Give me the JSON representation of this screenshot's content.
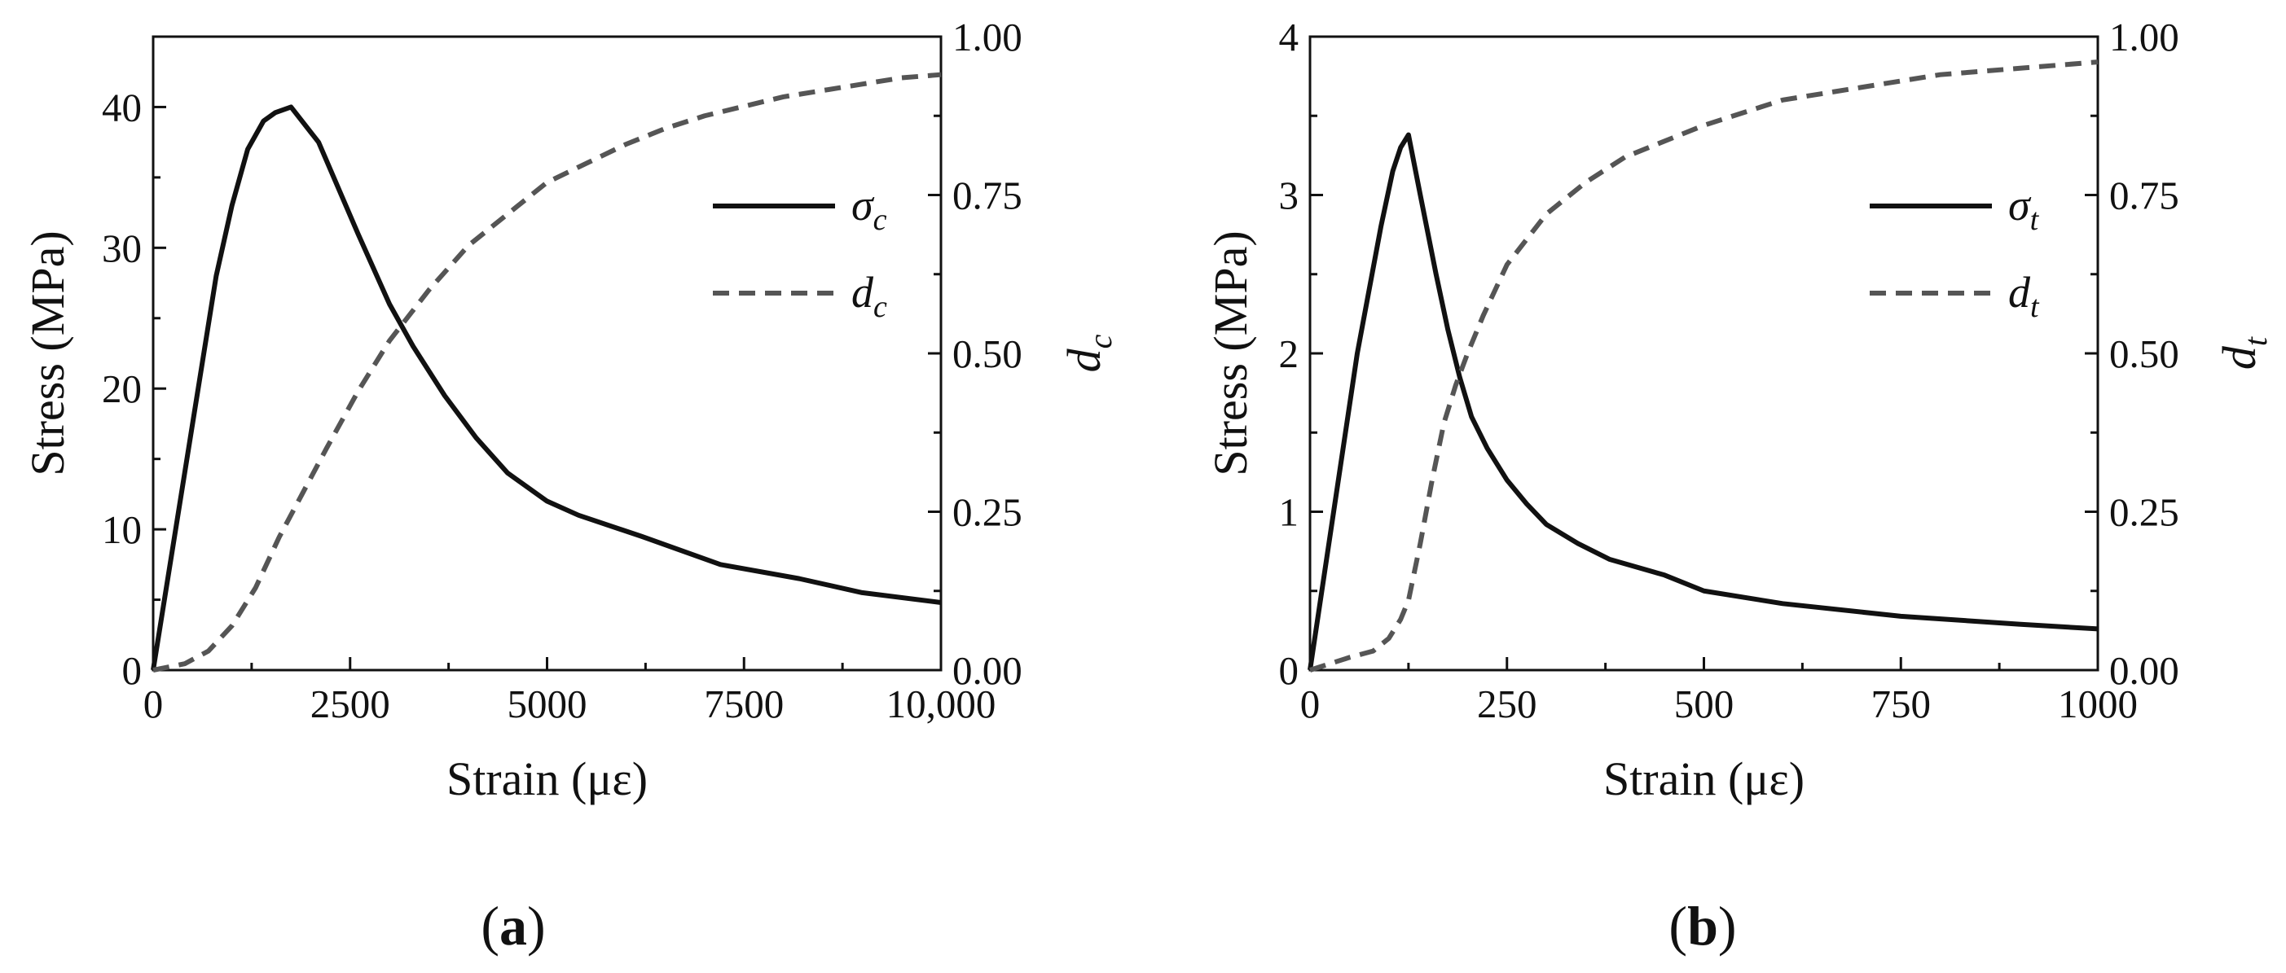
{
  "chart_data": [
    {
      "type": "line",
      "panel_label": "(a)",
      "xlabel": "Strain (με)",
      "ylabel": "Stress (MPa)",
      "y2label": "dc",
      "xlim": [
        0,
        10000
      ],
      "ylim": [
        0,
        45
      ],
      "y2lim": [
        0,
        1.0
      ],
      "x_ticks": [
        0,
        2500,
        5000,
        7500,
        10000
      ],
      "x_tick_labels": [
        "0",
        "2500",
        "5000",
        "7500",
        "10,000"
      ],
      "y_ticks": [
        0,
        10,
        20,
        30,
        40
      ],
      "y_tick_labels": [
        "0",
        "10",
        "20",
        "30",
        "40"
      ],
      "y2_ticks": [
        0,
        0.25,
        0.5,
        0.75,
        1.0
      ],
      "y2_tick_labels": [
        "0.00",
        "0.25",
        "0.50",
        "0.75",
        "1.00"
      ],
      "legend_position": "center-right",
      "series": [
        {
          "name": "σc",
          "label_main": "σ",
          "label_sub": "c",
          "axis": "left",
          "style": "solid",
          "color": "#111111",
          "x": [
            0,
            400,
            800,
            1000,
            1200,
            1400,
            1550,
            1750,
            2100,
            2600,
            3000,
            3300,
            3700,
            4100,
            4500,
            5000,
            5400,
            6200,
            7200,
            8200,
            9000,
            10000
          ],
          "y": [
            0,
            14,
            28,
            33,
            37,
            39,
            39.6,
            40,
            37.5,
            31,
            26,
            23,
            19.5,
            16.5,
            14,
            12,
            11,
            9.5,
            7.5,
            6.5,
            5.5,
            4.8
          ]
        },
        {
          "name": "dc",
          "label_main": "d",
          "label_sub": "c",
          "axis": "right",
          "style": "dashed",
          "color": "#555555",
          "x": [
            0,
            400,
            700,
            1000,
            1300,
            1600,
            1900,
            2200,
            2600,
            3000,
            3500,
            4000,
            4500,
            5000,
            5500,
            6000,
            6500,
            7000,
            7500,
            8000,
            8500,
            9000,
            9500,
            10000
          ],
          "y": [
            0,
            0.01,
            0.03,
            0.07,
            0.13,
            0.21,
            0.28,
            0.35,
            0.44,
            0.52,
            0.6,
            0.67,
            0.72,
            0.77,
            0.8,
            0.83,
            0.855,
            0.875,
            0.89,
            0.905,
            0.915,
            0.925,
            0.935,
            0.94
          ]
        }
      ]
    },
    {
      "type": "line",
      "panel_label": "(b)",
      "xlabel": "Strain (με)",
      "ylabel": "Stress (MPa)",
      "y2label": "dt",
      "xlim": [
        0,
        1000
      ],
      "ylim": [
        0,
        4
      ],
      "y2lim": [
        0,
        1.0
      ],
      "x_ticks": [
        0,
        250,
        500,
        750,
        1000
      ],
      "x_tick_labels": [
        "0",
        "250",
        "500",
        "750",
        "1000"
      ],
      "y_ticks": [
        0,
        1,
        2,
        3,
        4
      ],
      "y_tick_labels": [
        "0",
        "1",
        "2",
        "3",
        "4"
      ],
      "y2_ticks": [
        0,
        0.25,
        0.5,
        0.75,
        1.0
      ],
      "y2_tick_labels": [
        "0.00",
        "0.25",
        "0.50",
        "0.75",
        "1.00"
      ],
      "legend_position": "top-right",
      "series": [
        {
          "name": "σt",
          "label_main": "σ",
          "label_sub": "t",
          "axis": "left",
          "style": "solid",
          "color": "#111111",
          "x": [
            0,
            30,
            60,
            90,
            105,
            115,
            125,
            140,
            160,
            175,
            190,
            205,
            225,
            250,
            275,
            300,
            340,
            380,
            450,
            500,
            600,
            750,
            900,
            1000
          ],
          "y": [
            0,
            1.0,
            2.0,
            2.8,
            3.15,
            3.3,
            3.38,
            3.0,
            2.5,
            2.15,
            1.85,
            1.6,
            1.4,
            1.2,
            1.05,
            0.92,
            0.8,
            0.7,
            0.6,
            0.5,
            0.42,
            0.34,
            0.29,
            0.26
          ]
        },
        {
          "name": "dt",
          "label_main": "d",
          "label_sub": "t",
          "axis": "right",
          "style": "dashed",
          "color": "#555555",
          "x": [
            0,
            50,
            80,
            100,
            115,
            125,
            140,
            155,
            170,
            185,
            200,
            220,
            250,
            300,
            350,
            400,
            500,
            600,
            700,
            800,
            900,
            1000
          ],
          "y": [
            0,
            0.02,
            0.03,
            0.05,
            0.08,
            0.11,
            0.2,
            0.3,
            0.39,
            0.45,
            0.5,
            0.56,
            0.64,
            0.72,
            0.77,
            0.81,
            0.86,
            0.9,
            0.92,
            0.94,
            0.95,
            0.96
          ]
        }
      ]
    }
  ]
}
